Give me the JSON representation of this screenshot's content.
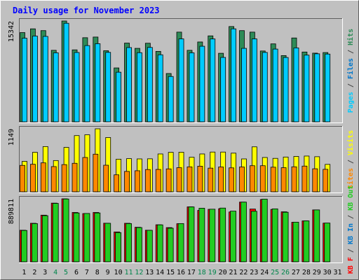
{
  "chart_data": {
    "type": "bar",
    "title": "Daily usage for November 2023",
    "categories": [
      "1",
      "2",
      "3",
      "4",
      "5",
      "6",
      "7",
      "8",
      "9",
      "10",
      "11",
      "12",
      "13",
      "14",
      "15",
      "16",
      "17",
      "18",
      "19",
      "20",
      "21",
      "22",
      "23",
      "24",
      "25",
      "26",
      "27",
      "28",
      "29",
      "30",
      "31"
    ],
    "weekend_days": [
      "4",
      "5",
      "11",
      "12",
      "18",
      "19",
      "25",
      "26"
    ],
    "panels": [
      {
        "id": "hits-files-pages",
        "max_label": "15342",
        "ylim": [
          0,
          15342
        ],
        "axis_label_parts": [
          {
            "text": "Pages",
            "color": "#00ccff"
          },
          {
            "text": " / ",
            "color": "#444444"
          },
          {
            "text": "Files",
            "color": "#0077cc"
          },
          {
            "text": " / ",
            "color": "#444444"
          },
          {
            "text": "Hits",
            "color": "#2e8b57"
          }
        ],
        "series": [
          {
            "name": "Hits",
            "color": "#2e8b57",
            "values": [
              13580,
              14150,
              13880,
              10880,
              15342,
              10950,
              12800,
              12900,
              10820,
              8200,
              11980,
              11180,
              11960,
              10720,
              7350,
              13650,
              10880,
              12150,
              13080,
              10430,
              14500,
              13880,
              13650,
              10780,
              11860,
              10080,
              12760,
              10620,
              10450,
              10540,
              null
            ]
          },
          {
            "name": "Files",
            "color": "#00ccff",
            "values": [
              12720,
              13050,
              13000,
              10500,
              15000,
              10550,
              11600,
              11890,
              10570,
              7550,
              11300,
              10520,
              11320,
              10200,
              6900,
              12620,
              10500,
              11500,
              12610,
              9800,
              14150,
              11180,
              12620,
              10560,
              11070,
              9790,
              11250,
              10150,
              10350,
              10310,
              null
            ]
          },
          {
            "name": "Pages",
            "color": "#00ccff",
            "values": [
              12720,
              13050,
              13000,
              10500,
              15000,
              10550,
              11600,
              11890,
              10570,
              7550,
              11300,
              10520,
              11320,
              10200,
              6900,
              12620,
              10500,
              11500,
              12610,
              9800,
              14150,
              11180,
              12620,
              10560,
              11070,
              9790,
              11250,
              10150,
              10350,
              10310,
              null
            ]
          }
        ]
      },
      {
        "id": "sites-visits",
        "max_label": "1149",
        "ylim": [
          0,
          1149
        ],
        "axis_label_parts": [
          {
            "text": "Sites",
            "color": "#ff8800"
          },
          {
            "text": " / ",
            "color": "#444444"
          },
          {
            "text": "Visits",
            "color": "#ffff00"
          }
        ],
        "series": [
          {
            "name": "Visits",
            "color": "#ffff00",
            "values": [
              555,
              720,
              825,
              570,
              810,
              1025,
              1040,
              1149,
              990,
              595,
              605,
              600,
              602,
              690,
              720,
              722,
              630,
              690,
              725,
              725,
              705,
              600,
              820,
              626,
              610,
              634,
              645,
              652,
              640,
              500,
              null
            ]
          },
          {
            "name": "Sites",
            "color": "#ff8800",
            "values": [
              482,
              502,
              528,
              460,
              496,
              520,
              626,
              686,
              485,
              310,
              372,
              384,
              406,
              408,
              418,
              440,
              455,
              467,
              432,
              453,
              437,
              453,
              476,
              476,
              449,
              440,
              456,
              469,
              420,
              410,
              null
            ]
          }
        ]
      },
      {
        "id": "kb",
        "max_label": "889811",
        "ylim": [
          0,
          889811
        ],
        "axis_label_parts": [
          {
            "text": "KB F",
            "color": "#ff0000"
          },
          {
            "text": " / ",
            "color": "#444444"
          },
          {
            "text": "KB In",
            "color": "#0077cc"
          },
          {
            "text": " / ",
            "color": "#444444"
          },
          {
            "text": "KB Out",
            "color": "#22cc22"
          }
        ],
        "series": [
          {
            "name": "KB F",
            "color": "#ff0000",
            "values": [
              446000,
              544000,
              659000,
              829000,
              889811,
              697000,
              681000,
              697000,
              545000,
              422000,
              544000,
              488000,
              446000,
              523000,
              483000,
              538000,
              776000,
              726000,
              741000,
              750000,
              704000,
              843000,
              745000,
              880000,
              740000,
              706000,
              558000,
              578000,
              733000,
              546000,
              null
            ]
          },
          {
            "name": "KB Out",
            "color": "#22cc22",
            "values": [
              443000,
              540000,
              652000,
              825000,
              887000,
              690000,
              683000,
              690000,
              544000,
              413000,
              540000,
              484000,
              445000,
              522000,
              475000,
              540000,
              775000,
              757000,
              743000,
              759000,
              716000,
              843000,
              714000,
              885000,
              748000,
              700000,
              560000,
              578000,
              733000,
              547000,
              null
            ]
          }
        ]
      }
    ]
  },
  "colors": {
    "background": "#c0c0c0",
    "panel": "#c0c0c0",
    "title": "#0000ff",
    "day_label": "#000000",
    "weekend_label": "#00864c",
    "border_dark": "#606060",
    "border_light": "#ffffff"
  }
}
